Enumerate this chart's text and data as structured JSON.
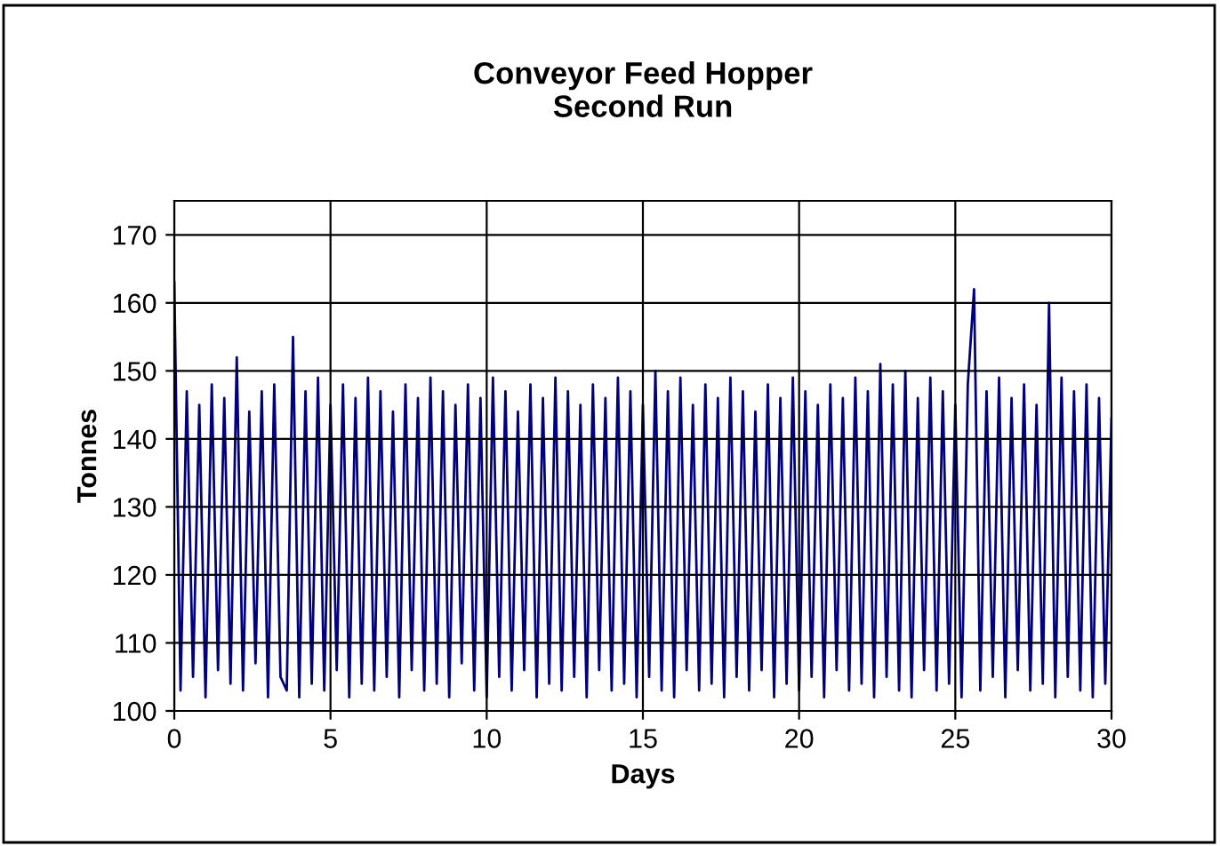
{
  "chart_data": {
    "type": "line",
    "title": "Conveyor Feed Hopper\nSecond Run",
    "xlabel": "Days",
    "ylabel": "Tonnes",
    "xlim": [
      0,
      30
    ],
    "xticks": [
      0,
      5,
      10,
      15,
      20,
      25,
      30
    ],
    "ylim": [
      100,
      175
    ],
    "yticks": [
      100,
      110,
      120,
      130,
      140,
      150,
      160,
      170
    ],
    "grid": true,
    "marker": "none",
    "line_style": "solid",
    "series": [
      {
        "color": "#000080",
        "x": [
          0,
          0.2,
          0.4,
          0.6,
          0.8,
          1,
          1.2,
          1.4,
          1.6,
          1.8,
          2,
          2.2,
          2.4,
          2.6,
          2.8,
          3,
          3.2,
          3.4,
          3.6,
          3.8,
          4,
          4.2,
          4.4,
          4.6,
          4.8,
          5,
          5.2,
          5.4,
          5.6,
          5.8,
          6,
          6.2,
          6.4,
          6.6,
          6.8,
          7,
          7.2,
          7.4,
          7.6,
          7.8,
          8,
          8.2,
          8.4,
          8.6,
          8.8,
          9,
          9.2,
          9.4,
          9.6,
          9.8,
          10,
          10.2,
          10.4,
          10.6,
          10.8,
          11,
          11.2,
          11.4,
          11.6,
          11.8,
          12,
          12.2,
          12.4,
          12.6,
          12.8,
          13,
          13.2,
          13.4,
          13.6,
          13.8,
          14,
          14.2,
          14.4,
          14.6,
          14.8,
          15,
          15.2,
          15.4,
          15.6,
          15.8,
          16,
          16.2,
          16.4,
          16.6,
          16.8,
          17,
          17.2,
          17.4,
          17.6,
          17.8,
          18,
          18.2,
          18.4,
          18.6,
          18.8,
          19,
          19.2,
          19.4,
          19.6,
          19.8,
          20,
          20.2,
          20.4,
          20.6,
          20.8,
          21,
          21.2,
          21.4,
          21.6,
          21.8,
          22,
          22.2,
          22.4,
          22.6,
          22.8,
          23,
          23.2,
          23.4,
          23.6,
          23.8,
          24,
          24.2,
          24.4,
          24.6,
          24.8,
          25,
          25.2,
          25.4,
          25.6,
          25.8,
          26,
          26.2,
          26.4,
          26.6,
          26.8,
          27,
          27.2,
          27.4,
          27.6,
          27.8,
          28,
          28.2,
          28.4,
          28.6,
          28.8,
          29,
          29.2,
          29.4,
          29.6,
          29.8,
          30
        ],
        "values": [
          163,
          103,
          147,
          105,
          145,
          102,
          148,
          106,
          146,
          104,
          152,
          103,
          144,
          107,
          147,
          102,
          148,
          105,
          103,
          155,
          102,
          147,
          104,
          149,
          103,
          145,
          106,
          148,
          102,
          146,
          104,
          149,
          103,
          147,
          105,
          144,
          102,
          148,
          106,
          146,
          103,
          149,
          104,
          147,
          102,
          145,
          107,
          148,
          103,
          146,
          102,
          149,
          105,
          147,
          103,
          144,
          106,
          148,
          102,
          146,
          104,
          149,
          103,
          147,
          105,
          145,
          102,
          148,
          106,
          146,
          103,
          149,
          104,
          147,
          102,
          145,
          105,
          150,
          103,
          147,
          102,
          149,
          106,
          145,
          103,
          148,
          104,
          146,
          102,
          149,
          105,
          147,
          103,
          144,
          106,
          148,
          102,
          146,
          104,
          149,
          103,
          147,
          105,
          145,
          102,
          148,
          106,
          146,
          103,
          149,
          104,
          147,
          102,
          151,
          105,
          148,
          103,
          150,
          102,
          146,
          106,
          149,
          103,
          147,
          104,
          145,
          102,
          148,
          162,
          103,
          147,
          105,
          149,
          102,
          146,
          106,
          148,
          103,
          145,
          104,
          160,
          102,
          149,
          105,
          147,
          103,
          148,
          102,
          146,
          104,
          143
        ]
      }
    ]
  }
}
